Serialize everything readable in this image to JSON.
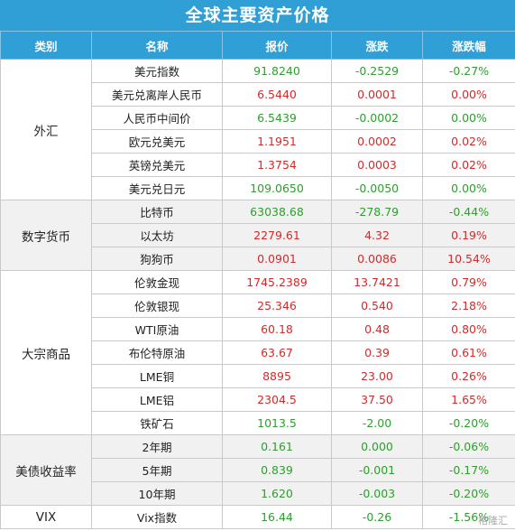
{
  "title": "全球主要资产价格",
  "headers": [
    "类别",
    "名称",
    "报价",
    "涨跌",
    "涨跌幅"
  ],
  "watermark": "格隆汇",
  "groups": [
    {
      "category": "外汇",
      "rows": [
        {
          "name": "美元指数",
          "price": "91.8240",
          "change": "-0.2529",
          "pct": "-0.27%",
          "dir": "down"
        },
        {
          "name": "美元兑离岸人民币",
          "price": "6.5440",
          "change": "0.0001",
          "pct": "0.00%",
          "dir": "up"
        },
        {
          "name": "人民币中间价",
          "price": "6.5439",
          "change": "-0.0002",
          "pct": "0.00%",
          "dir": "down"
        },
        {
          "name": "欧元兑美元",
          "price": "1.1951",
          "change": "0.0002",
          "pct": "0.02%",
          "dir": "up"
        },
        {
          "name": "英镑兑美元",
          "price": "1.3754",
          "change": "0.0003",
          "pct": "0.02%",
          "dir": "up"
        },
        {
          "name": "美元兑日元",
          "price": "109.0650",
          "change": "-0.0050",
          "pct": "0.00%",
          "dir": "down"
        }
      ]
    },
    {
      "category": "数字货币",
      "rows": [
        {
          "name": "比特币",
          "price": "63038.68",
          "change": "-278.79",
          "pct": "-0.44%",
          "dir": "down"
        },
        {
          "name": "以太坊",
          "price": "2279.61",
          "change": "4.32",
          "pct": "0.19%",
          "dir": "up"
        },
        {
          "name": "狗狗币",
          "price": "0.0901",
          "change": "0.0086",
          "pct": "10.54%",
          "dir": "up"
        }
      ]
    },
    {
      "category": "大宗商品",
      "rows": [
        {
          "name": "伦敦金现",
          "price": "1745.2389",
          "change": "13.7421",
          "pct": "0.79%",
          "dir": "up"
        },
        {
          "name": "伦敦银现",
          "price": "25.346",
          "change": "0.540",
          "pct": "2.18%",
          "dir": "up"
        },
        {
          "name": "WTI原油",
          "price": "60.18",
          "change": "0.48",
          "pct": "0.80%",
          "dir": "up"
        },
        {
          "name": "布伦特原油",
          "price": "63.67",
          "change": "0.39",
          "pct": "0.61%",
          "dir": "up"
        },
        {
          "name": "LME铜",
          "price": "8895",
          "change": "23.00",
          "pct": "0.26%",
          "dir": "up"
        },
        {
          "name": "LME铝",
          "price": "2304.5",
          "change": "37.50",
          "pct": "1.65%",
          "dir": "up"
        },
        {
          "name": "铁矿石",
          "price": "1013.5",
          "change": "-2.00",
          "pct": "-0.20%",
          "dir": "down"
        }
      ]
    },
    {
      "category": "美债收益率",
      "rows": [
        {
          "name": "2年期",
          "price": "0.161",
          "change": "0.000",
          "pct": "-0.06%",
          "dir": "down"
        },
        {
          "name": "5年期",
          "price": "0.839",
          "change": "-0.001",
          "pct": "-0.17%",
          "dir": "down"
        },
        {
          "name": "10年期",
          "price": "1.620",
          "change": "-0.003",
          "pct": "-0.20%",
          "dir": "down"
        }
      ]
    },
    {
      "category": "VIX",
      "rows": [
        {
          "name": "Vix指数",
          "price": "16.44",
          "change": "-0.26",
          "pct": "-1.56%",
          "dir": "down"
        }
      ]
    }
  ]
}
